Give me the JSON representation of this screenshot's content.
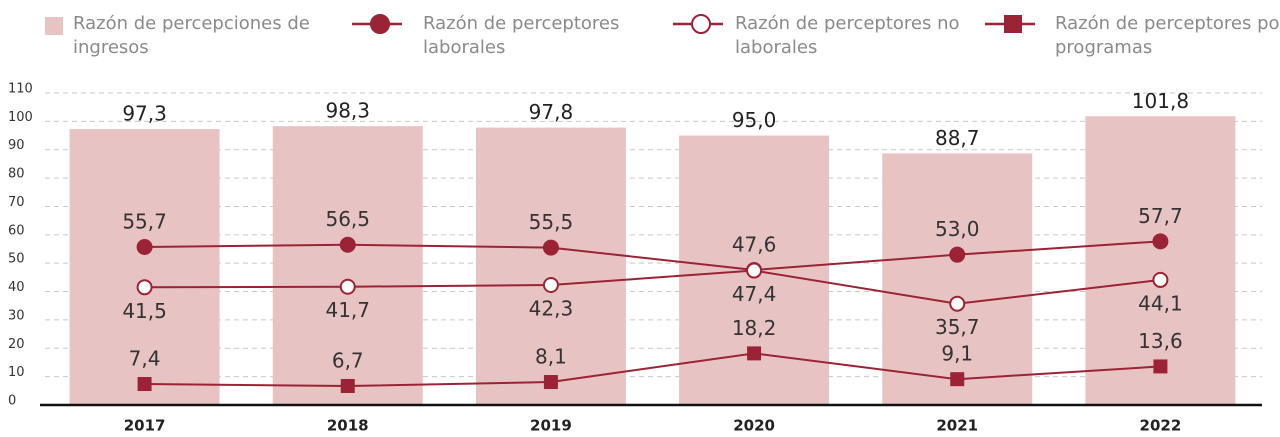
{
  "chart_data": {
    "type": "combo",
    "categories": [
      "2017",
      "2018",
      "2019",
      "2020",
      "2021",
      "2022"
    ],
    "series": [
      {
        "name": "Razón de percepciones de ingresos",
        "type": "bar",
        "color": "#e8c3c3",
        "values": [
          97.3,
          98.3,
          97.8,
          95.0,
          88.7,
          101.8
        ],
        "value_labels": [
          "97,3",
          "98,3",
          "97,8",
          "95,0",
          "88,7",
          "101,8"
        ]
      },
      {
        "name": "Razón de perceptores laborales",
        "type": "line",
        "marker": "circle",
        "color": "#9b2335",
        "values": [
          55.7,
          56.5,
          55.5,
          47.6,
          53.0,
          57.7
        ],
        "value_labels": [
          "55,7",
          "56,5",
          "55,5",
          "47,6",
          "53,0",
          "57,7"
        ]
      },
      {
        "name": "Razón de perceptores no laborales",
        "type": "line",
        "marker": "circle-open",
        "color": "#9b2335",
        "values": [
          41.5,
          41.7,
          42.3,
          47.4,
          35.7,
          44.1
        ],
        "value_labels": [
          "41,5",
          "41,7",
          "42,3",
          "47,4",
          "35,7",
          "44,1"
        ]
      },
      {
        "name": "Razón de perceptores por programas",
        "type": "line",
        "marker": "square",
        "color": "#9b2335",
        "values": [
          7.4,
          6.7,
          8.1,
          18.2,
          9.1,
          13.6
        ],
        "value_labels": [
          "7,4",
          "6,7",
          "8,1",
          "18,2",
          "9,1",
          "13,6"
        ]
      }
    ],
    "ylim": [
      0,
      110
    ],
    "yticks": [
      0,
      10,
      20,
      30,
      40,
      50,
      60,
      70,
      80,
      90,
      100,
      110
    ],
    "grid": true
  }
}
